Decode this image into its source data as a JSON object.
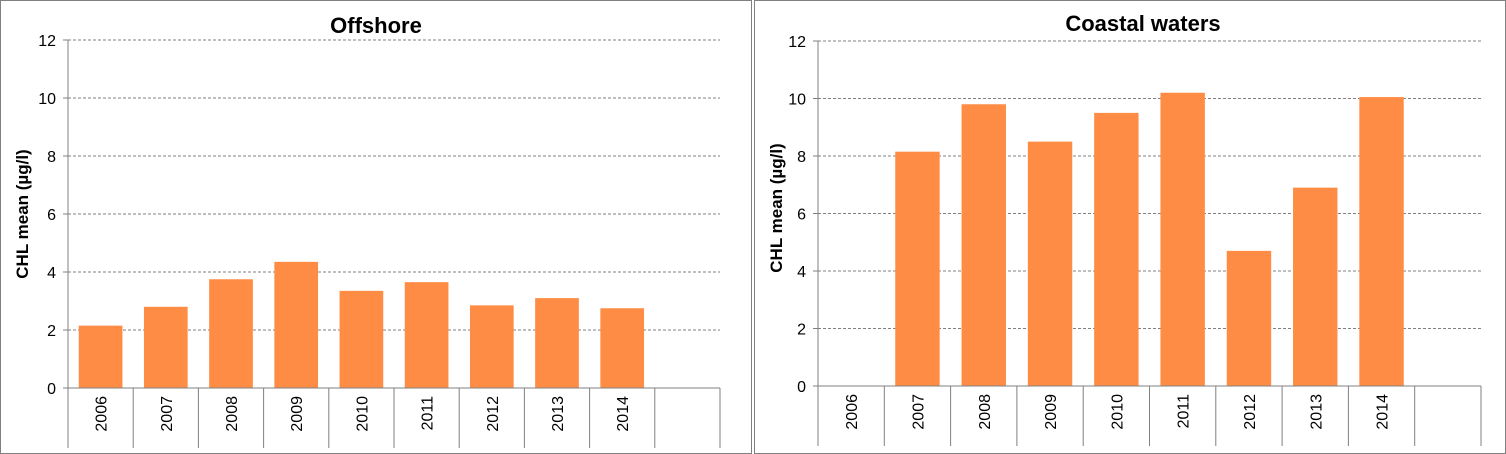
{
  "colors": {
    "bar": "#ff8c44",
    "grid": "#808080",
    "axis": "#808080",
    "border": "#808080"
  },
  "chart_data": [
    {
      "type": "bar",
      "title": "Offshore",
      "xlabel": "",
      "ylabel": "CHL mean (µg/l)",
      "ylim": [
        0,
        12
      ],
      "yticks": [
        0,
        2,
        4,
        6,
        8,
        10,
        12
      ],
      "grid": true,
      "categories": [
        "2006",
        "2007",
        "2008",
        "2009",
        "2010",
        "2011",
        "2012",
        "2013",
        "2014",
        ""
      ],
      "values": [
        2.15,
        2.8,
        3.75,
        4.35,
        3.35,
        3.65,
        2.85,
        3.1,
        2.75,
        null
      ]
    },
    {
      "type": "bar",
      "title": "Coastal waters",
      "xlabel": "",
      "ylabel": "CHL mean (µg/l)",
      "ylim": [
        0,
        12
      ],
      "yticks": [
        0,
        2,
        4,
        6,
        8,
        10,
        12
      ],
      "grid": true,
      "categories": [
        "2006",
        "2007",
        "2008",
        "2009",
        "2010",
        "2011",
        "2012",
        "2013",
        "2014",
        ""
      ],
      "values": [
        null,
        8.15,
        9.8,
        8.5,
        9.5,
        10.2,
        4.7,
        6.9,
        10.05,
        null
      ]
    }
  ]
}
